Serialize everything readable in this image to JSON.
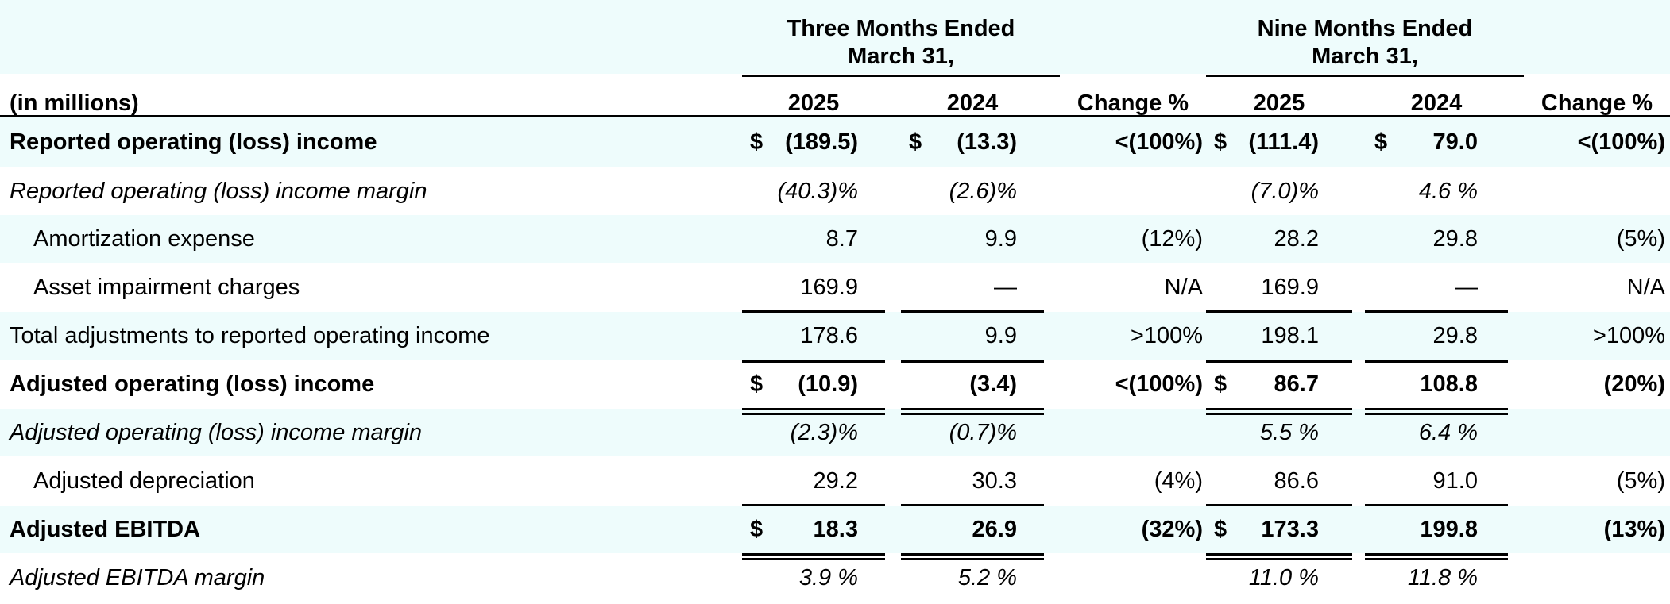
{
  "header": {
    "group_three": [
      "Three Months Ended",
      "March 31,"
    ],
    "group_nine": [
      "Nine Months Ended",
      "March 31,"
    ],
    "row_label": "(in millions)",
    "columns": [
      "2025",
      "2024",
      "Change %",
      "2025",
      "2024",
      "Change %"
    ]
  },
  "rows": [
    {
      "label": "Reported operating (loss) income",
      "style": "bold",
      "d1": "$",
      "v1": "(189.5)",
      "d2": "$",
      "v2": "(13.3)",
      "c1": "<(100%)",
      "d3": "$",
      "v3": "(111.4)",
      "d4": "$",
      "v4": "79.0",
      "c2": "<(100%)"
    },
    {
      "label": "Reported operating (loss) income margin",
      "style": "italic",
      "d1": "",
      "v1": "(40.3)%",
      "d2": "",
      "v2": "(2.6)%",
      "c1": "",
      "d3": "",
      "v3": "(7.0)%",
      "d4": "",
      "v4": "4.6 %",
      "c2": ""
    },
    {
      "label": "Amortization expense",
      "style": "indent",
      "d1": "",
      "v1": "8.7",
      "d2": "",
      "v2": "9.9",
      "c1": "(12%)",
      "d3": "",
      "v3": "28.2",
      "d4": "",
      "v4": "29.8",
      "c2": "(5%)"
    },
    {
      "label": "Asset impairment charges",
      "style": "indent",
      "d1": "",
      "v1": "169.9",
      "d2": "",
      "v2": "—",
      "c1": "N/A",
      "d3": "",
      "v3": "169.9",
      "d4": "",
      "v4": "—",
      "c2": "N/A"
    },
    {
      "label": "Total adjustments to reported operating income",
      "style": "normal",
      "d1": "",
      "v1": "178.6",
      "d2": "",
      "v2": "9.9",
      "c1": ">100%",
      "d3": "",
      "v3": "198.1",
      "d4": "",
      "v4": "29.8",
      "c2": ">100%"
    },
    {
      "label": "Adjusted operating (loss) income",
      "style": "bold",
      "d1": "$",
      "v1": "(10.9)",
      "d2": "",
      "v2": "(3.4)",
      "c1": "<(100%)",
      "d3": "$",
      "v3": "86.7",
      "d4": "",
      "v4": "108.8",
      "c2": "(20%)"
    },
    {
      "label": "Adjusted operating (loss) income margin",
      "style": "italic",
      "d1": "",
      "v1": "(2.3)%",
      "d2": "",
      "v2": "(0.7)%",
      "c1": "",
      "d3": "",
      "v3": "5.5 %",
      "d4": "",
      "v4": "6.4 %",
      "c2": ""
    },
    {
      "label": "Adjusted depreciation",
      "style": "indent",
      "d1": "",
      "v1": "29.2",
      "d2": "",
      "v2": "30.3",
      "c1": "(4%)",
      "d3": "",
      "v3": "86.6",
      "d4": "",
      "v4": "91.0",
      "c2": "(5%)"
    },
    {
      "label": "Adjusted EBITDA",
      "style": "bold",
      "d1": "$",
      "v1": "18.3",
      "d2": "",
      "v2": "26.9",
      "c1": "(32%)",
      "d3": "$",
      "v3": "173.3",
      "d4": "",
      "v4": "199.8",
      "c2": "(13%)"
    },
    {
      "label": "Adjusted EBITDA margin",
      "style": "italic",
      "d1": "",
      "v1": "3.9 %",
      "d2": "",
      "v2": "5.2 %",
      "c1": "",
      "d3": "",
      "v3": "11.0 %",
      "d4": "",
      "v4": "11.8 %",
      "c2": ""
    }
  ],
  "colors": {
    "band": "#eefcfc"
  }
}
